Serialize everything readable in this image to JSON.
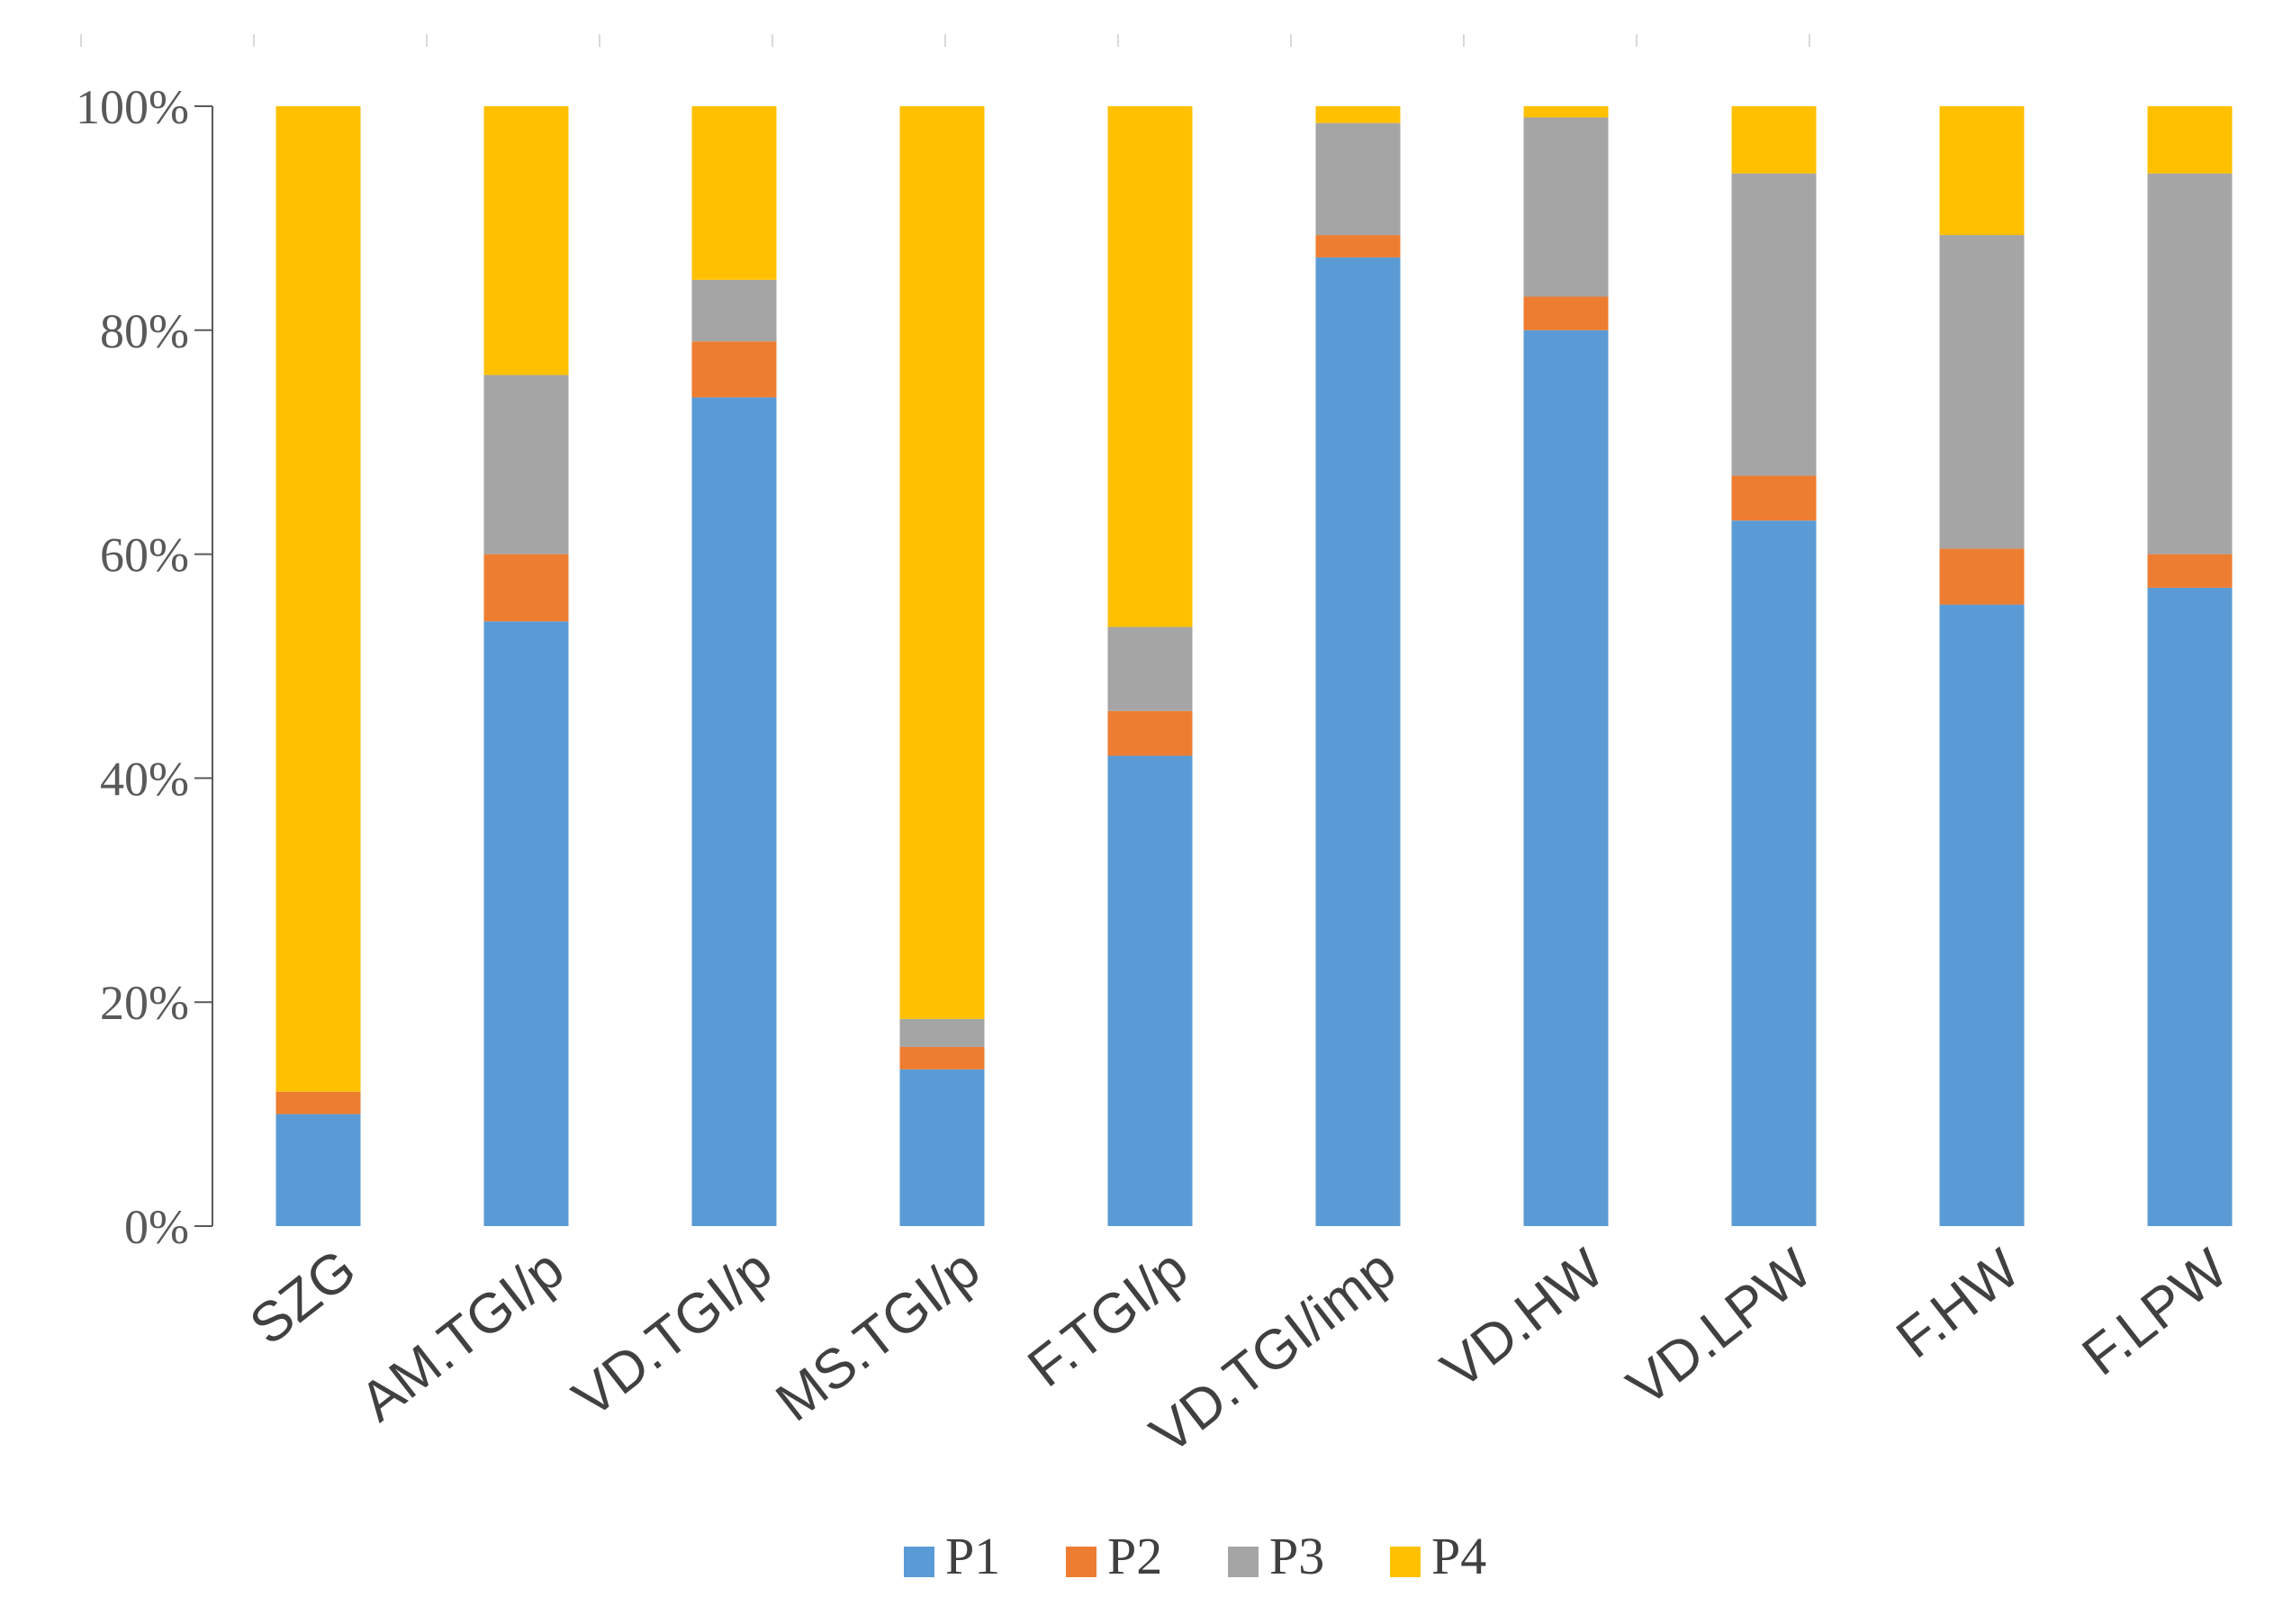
{
  "chart_data": {
    "type": "bar",
    "stacked": true,
    "normalized": true,
    "categories": [
      "SZG",
      "AM.TGI/p",
      "VD.TGI/p",
      "MS.TGI/p",
      "F.TGI/p",
      "VD.TGI/imp",
      "VD.HW",
      "VD.LPW",
      "F.HW",
      "F.LPW"
    ],
    "series": [
      {
        "name": "P1",
        "color": "#5B9BD5",
        "values": [
          10,
          54,
          74,
          14,
          42,
          86.5,
          80,
          63,
          55.5,
          57
        ]
      },
      {
        "name": "P2",
        "color": "#ED7D31",
        "values": [
          2,
          6,
          5,
          2,
          4,
          2,
          3,
          4,
          5,
          3
        ]
      },
      {
        "name": "P3",
        "color": "#A5A5A5",
        "values": [
          0,
          16,
          5.5,
          2.5,
          7.5,
          10,
          16,
          27,
          28,
          34
        ]
      },
      {
        "name": "P4",
        "color": "#FFC000",
        "values": [
          88,
          24,
          15.5,
          81.5,
          46.5,
          1.5,
          1,
          6,
          11.5,
          6
        ]
      }
    ],
    "yticks": [
      "0%",
      "20%",
      "40%",
      "60%",
      "80%",
      "100%"
    ],
    "ylim": [
      0,
      100
    ],
    "legend_position": "bottom",
    "title": "",
    "xlabel": "",
    "ylabel": ""
  }
}
